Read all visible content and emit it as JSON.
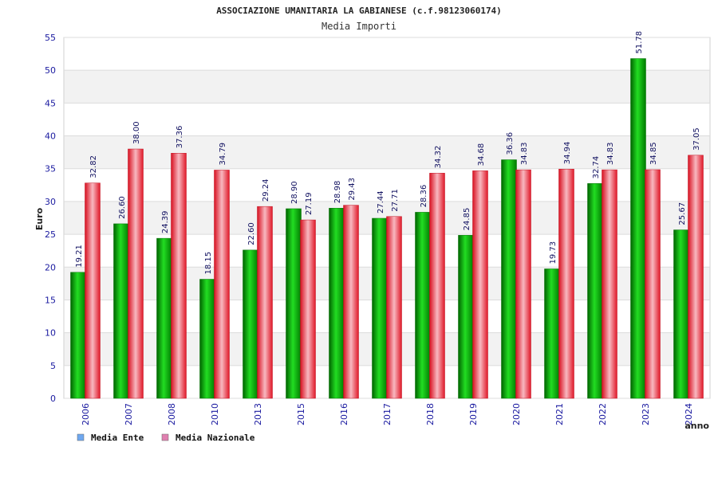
{
  "chart_data": {
    "type": "bar",
    "title": "ASSOCIAZIONE UMANITARIA LA GABIANESE (c.f.98123060174)",
    "subtitle": "Media Importi",
    "xlabel": "anno",
    "ylabel": "Euro",
    "ylim": [
      0,
      55
    ],
    "yticks": [
      0,
      5,
      10,
      15,
      20,
      25,
      30,
      35,
      40,
      45,
      50,
      55
    ],
    "grid": true,
    "legend_position": "bottom-left",
    "categories": [
      "2006",
      "2007",
      "2008",
      "2010",
      "2013",
      "2015",
      "2016",
      "2017",
      "2018",
      "2019",
      "2020",
      "2021",
      "2022",
      "2023",
      "2024"
    ],
    "series": [
      {
        "name": "Media Ente",
        "color": "#00b000",
        "legend_color": "#6fa8f0",
        "values": [
          19.21,
          26.6,
          24.39,
          18.15,
          22.6,
          28.9,
          28.98,
          27.44,
          28.36,
          24.85,
          36.36,
          19.73,
          32.74,
          51.78,
          25.67
        ],
        "labels": [
          "19.21",
          "26.60",
          "24.39",
          "18.15",
          "22.60",
          "28.90",
          "28.98",
          "27.44",
          "28.36",
          "24.85",
          "36.36",
          "19.73",
          "32.74",
          "51.78",
          "25.67"
        ]
      },
      {
        "name": "Media Nazionale",
        "color": "#e8202a",
        "legend_color": "#e080b0",
        "values": [
          32.82,
          38.0,
          37.36,
          34.79,
          29.24,
          27.19,
          29.43,
          27.71,
          34.32,
          34.68,
          34.83,
          34.94,
          34.83,
          34.85,
          37.05
        ],
        "labels": [
          "32.82",
          "38.00",
          "37.36",
          "34.79",
          "29.24",
          "27.19",
          "29.43",
          "27.71",
          "34.32",
          "34.68",
          "34.83",
          "34.94",
          "34.83",
          "34.85",
          "37.05"
        ]
      }
    ]
  }
}
